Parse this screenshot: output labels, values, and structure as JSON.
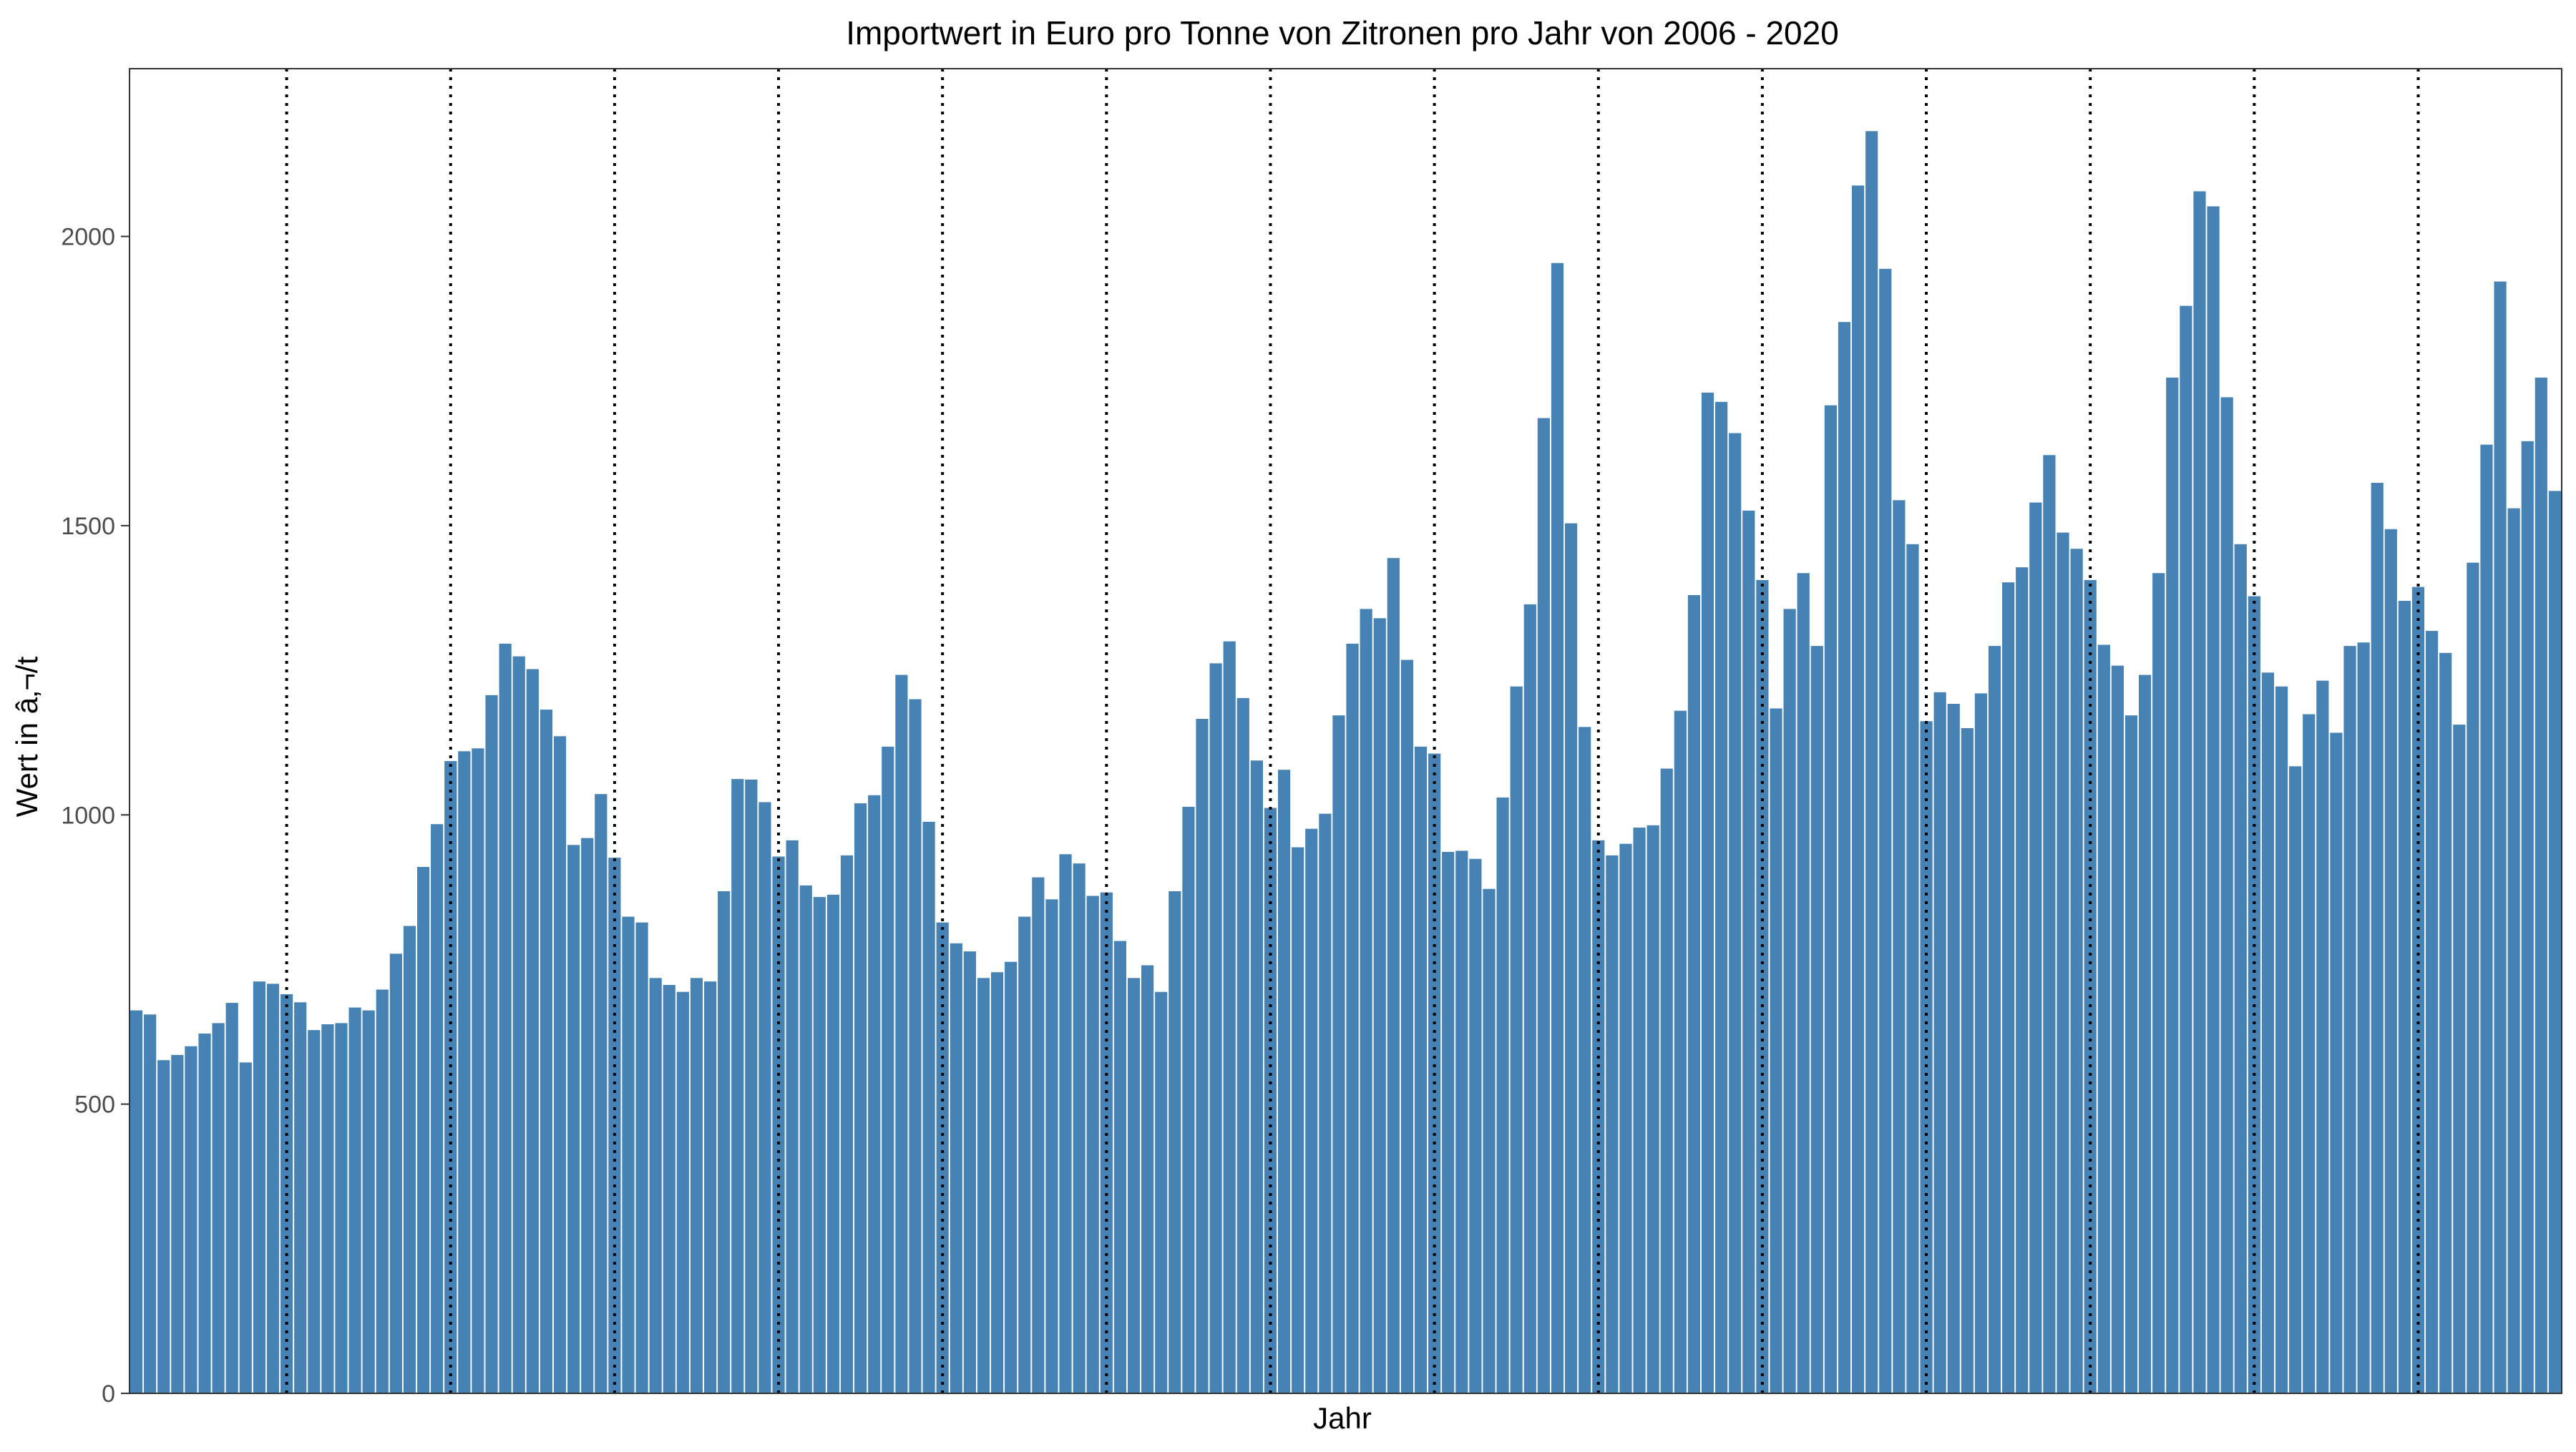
{
  "chart_data": {
    "type": "bar",
    "title": "Importwert in Euro pro Tonne von Zitronen pro Jahr von 2006 - 2020",
    "xlabel": "Jahr",
    "ylabel": "Wert in â‚¬/t",
    "ylim": [
      0,
      2290
    ],
    "yticks": [
      0,
      500,
      1000,
      1500,
      2000
    ],
    "year_separators": true,
    "bar_color": "#4682B4",
    "separator_color": "#000000",
    "grid": false,
    "values": [
      662,
      655,
      576,
      585,
      600,
      622,
      640,
      675,
      572,
      712,
      708,
      690,
      676,
      628,
      638,
      640,
      667,
      662,
      698,
      760,
      808,
      910,
      984,
      1093,
      1110,
      1115,
      1207,
      1296,
      1274,
      1252,
      1182,
      1136,
      948,
      960,
      1036,
      926,
      824,
      814,
      718,
      706,
      694,
      718,
      712,
      868,
      1062,
      1061,
      1022,
      928,
      956,
      878,
      858,
      862,
      930,
      1020,
      1034,
      1118,
      1242,
      1200,
      988,
      814,
      778,
      764,
      718,
      728,
      746,
      824,
      892,
      854,
      932,
      916,
      860,
      866,
      782,
      718,
      740,
      694,
      868,
      1014,
      1166,
      1262,
      1300,
      1202,
      1094,
      1012,
      1078,
      944,
      976,
      1002,
      1172,
      1296,
      1356,
      1340,
      1444,
      1268,
      1118,
      1106,
      936,
      938,
      924,
      872,
      1030,
      1222,
      1364,
      1686,
      1954,
      1504,
      1152,
      956,
      930,
      950,
      978,
      982,
      1080,
      1180,
      1380,
      1730,
      1714,
      1660,
      1526,
      1406,
      1184,
      1356,
      1418,
      1292,
      1708,
      1852,
      2088,
      2182,
      1944,
      1544,
      1468,
      1162,
      1212,
      1192,
      1150,
      1210,
      1292,
      1402,
      1428,
      1540,
      1622,
      1488,
      1460,
      1406,
      1294,
      1258,
      1172,
      1242,
      1418,
      1756,
      1880,
      2078,
      2052,
      1722,
      1468,
      1378,
      1246,
      1222,
      1084,
      1174,
      1232,
      1142,
      1292,
      1298,
      1574,
      1494,
      1370,
      1394,
      1318,
      1280,
      1156,
      1436,
      1640,
      1922,
      1530,
      1646,
      1756,
      1560
    ]
  }
}
